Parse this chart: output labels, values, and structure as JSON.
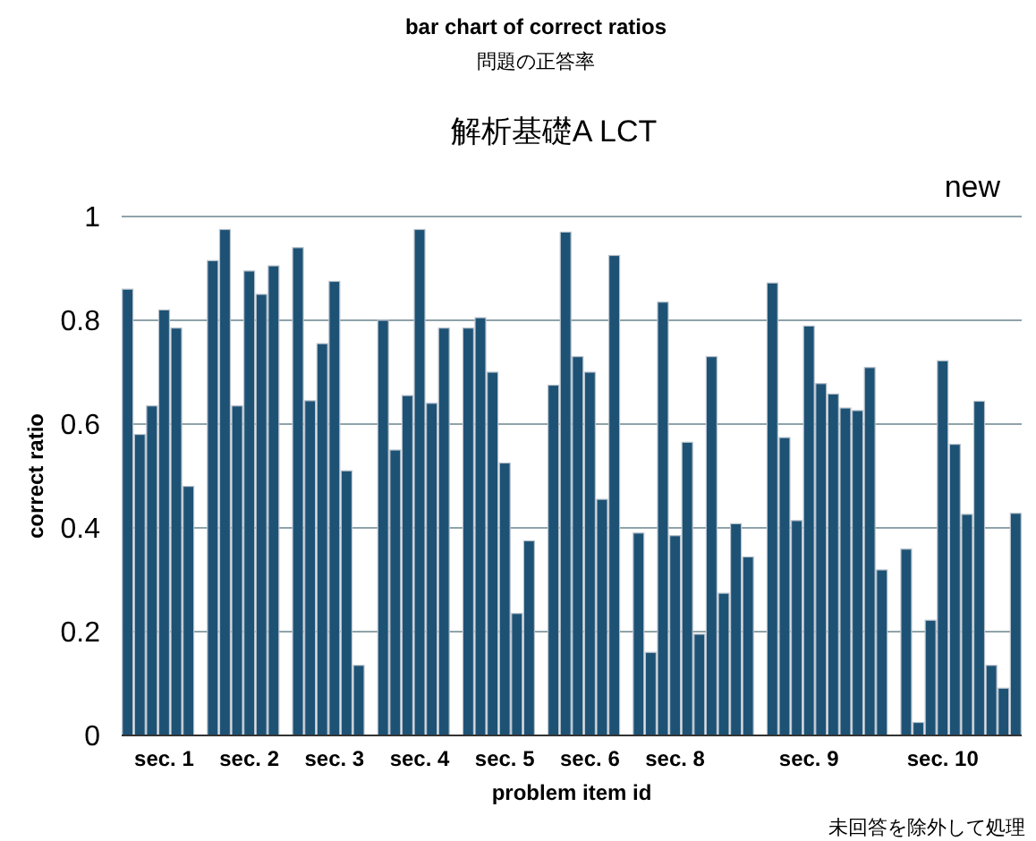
{
  "chart_data": {
    "type": "bar",
    "title": "bar chart of correct ratios",
    "subtitle": "問題の正答率",
    "xlabel": "problem item id",
    "ylabel": "correct ratio",
    "annotations": [
      "解析基礎A LCT",
      "new",
      "未回答を除外して処理"
    ],
    "categories": [
      null,
      null,
      null,
      "sec. 1",
      null,
      null,
      null,
      null,
      null,
      null,
      "sec. 2",
      null,
      null,
      null,
      null,
      null,
      null,
      "sec. 3",
      null,
      null,
      null,
      null,
      null,
      null,
      "sec. 4",
      null,
      null,
      null,
      null,
      null,
      null,
      "sec. 5",
      null,
      null,
      null,
      null,
      null,
      null,
      "sec. 6",
      null,
      null,
      null,
      null,
      null,
      null,
      "sec. 8",
      null,
      null,
      null,
      null,
      null,
      null,
      null,
      null,
      null,
      null,
      "sec. 9",
      null,
      null,
      null,
      null,
      null,
      null,
      null,
      null,
      null,
      null,
      "sec. 10",
      null,
      null,
      null,
      null,
      null,
      null
    ],
    "values": [
      0.86,
      0.58,
      0.635,
      0.82,
      0.785,
      0.48,
      null,
      0.915,
      0.975,
      0.635,
      0.895,
      0.85,
      0.905,
      null,
      0.94,
      0.645,
      0.755,
      0.875,
      0.51,
      0.135,
      null,
      0.8,
      0.55,
      0.655,
      0.975,
      0.64,
      0.785,
      null,
      0.785,
      0.805,
      0.7,
      0.525,
      0.235,
      0.375,
      null,
      0.675,
      0.97,
      0.73,
      0.7,
      0.455,
      0.925,
      null,
      0.39,
      0.16,
      0.835,
      0.385,
      0.565,
      0.195,
      0.73,
      0.274,
      0.408,
      0.344,
      null,
      0.872,
      0.574,
      0.414,
      0.789,
      0.678,
      0.658,
      0.631,
      0.626,
      0.709,
      0.319,
      null,
      0.359,
      0.025,
      0.222,
      0.722,
      0.561,
      0.426,
      0.644,
      0.135,
      0.091,
      0.428
    ],
    "color": "#1d5275",
    "ylim": [
      0,
      1
    ],
    "yticks": [
      0,
      0.2,
      0.4,
      0.6,
      0.8,
      1
    ],
    "grid": "y"
  }
}
